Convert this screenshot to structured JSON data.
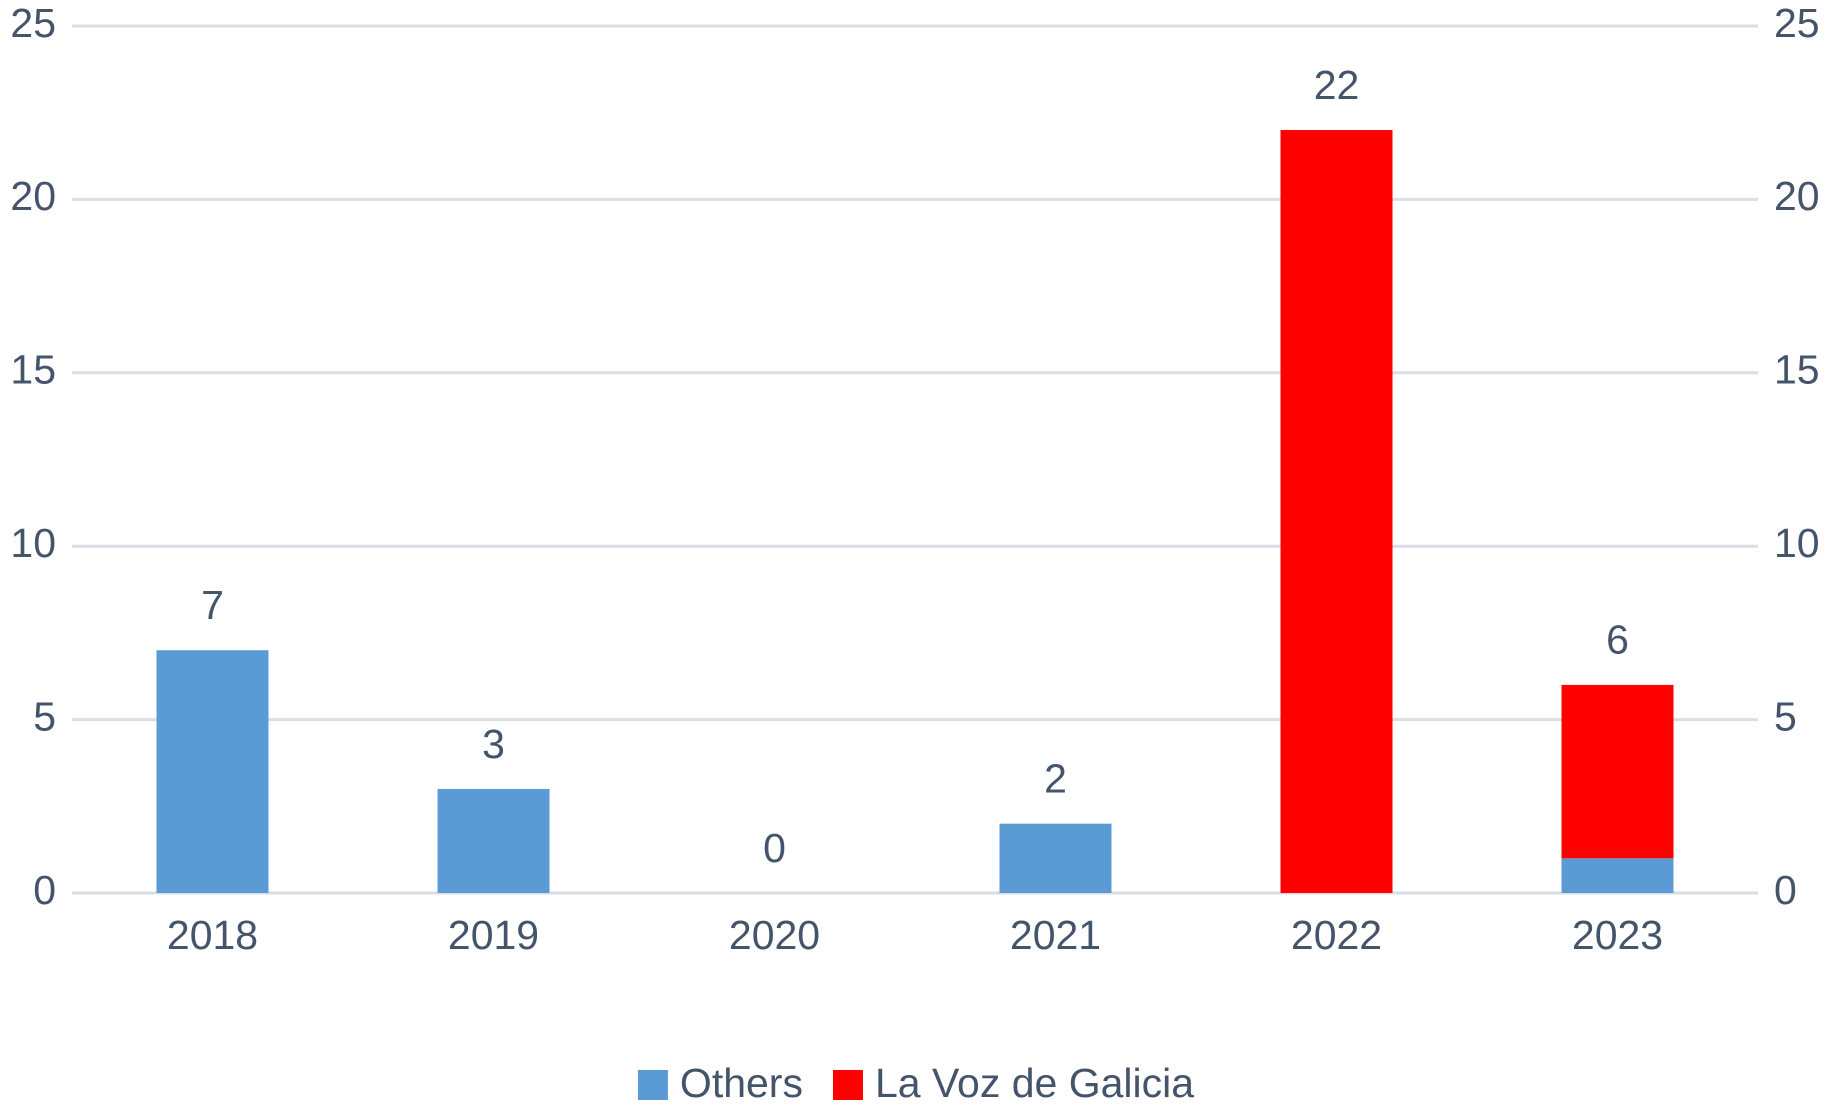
{
  "chart_data": {
    "type": "stacked_bar",
    "categories": [
      "2018",
      "2019",
      "2020",
      "2021",
      "2022",
      "2023"
    ],
    "series": [
      {
        "name": "Others",
        "color": "#5b9bd5",
        "values": [
          7,
          3,
          0,
          2,
          0,
          1
        ]
      },
      {
        "name": "La Voz de Galicia",
        "color": "#ff0000",
        "values": [
          0,
          0,
          0,
          0,
          22,
          5
        ]
      }
    ],
    "totals": [
      7,
      3,
      0,
      2,
      22,
      6
    ],
    "ylim": [
      0,
      25
    ],
    "yticks": [
      0,
      5,
      10,
      15,
      20,
      25
    ],
    "y2lim": [
      0,
      25
    ],
    "y2ticks": [
      0,
      5,
      10,
      15,
      20,
      25
    ],
    "grid": true,
    "legend": "bottom"
  }
}
